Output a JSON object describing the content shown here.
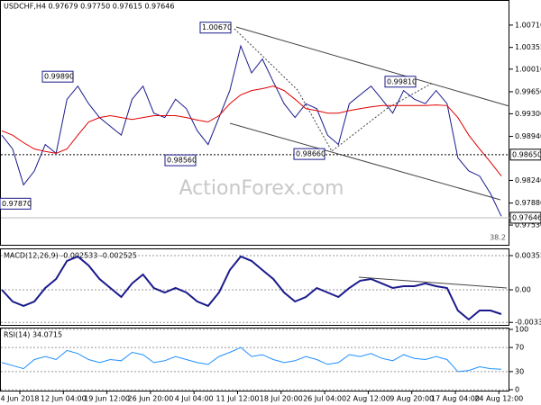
{
  "header": {
    "title": "USDCHF,H4  0.97679 0.97750 0.97615 0.97646",
    "macd_title": "MACD(12,26,9) -0.002533 -0.002525",
    "rsi_title": "RSI(14) 34.0715",
    "watermark": "ActionForex.com"
  },
  "x_labels": [
    "4 Jun 2018",
    "12 Jun 04:00",
    "19 Jun 12:00",
    "26 Jun 20:00",
    "4 Jul 04:00",
    "11 Jul 12:00",
    "18 Jul 20:00",
    "26 Jul 04:00",
    "2 Aug 12:00",
    "9 Aug 20:00",
    "17 Aug 04:00",
    "24 Aug 12:00"
  ],
  "chart_data": [
    {
      "type": "line",
      "ylim": [
        0.97216,
        1.01095
      ],
      "yticks": [
        {
          "value": 1.0071,
          "label": "1.00710"
        },
        1.00355,
        {
          "value": 1.0001,
          "label": "1.00010"
        },
        {
          "value": 0.9965,
          "label": "0.99650"
        },
        {
          "value": 0.993,
          "label": "0.99300"
        },
        {
          "value": 0.9894,
          "label": "0.98940"
        },
        {
          "value": 0.9824,
          "label": "0.98240"
        },
        {
          "value": 0.9788,
          "label": "0.97880"
        },
        {
          "value": 0.9753,
          "label": "0.97530"
        }
      ],
      "series": [
        {
          "color": "#1a1a8c",
          "values": [
            0.9896,
            0.9874,
            0.9817,
            0.9839,
            0.9881,
            0.9867,
            0.9953,
            0.9974,
            0.9946,
            0.9924,
            0.991,
            0.9896,
            0.9953,
            0.9974,
            0.9931,
            0.9924,
            0.9953,
            0.9938,
            0.9903,
            0.9881,
            0.9924,
            0.9967,
            1.0038,
            0.9995,
            1.0017,
            0.9981,
            0.9946,
            0.9924,
            0.9946,
            0.9938,
            0.9896,
            0.9881,
            0.9946,
            0.996,
            0.9974,
            0.9953,
            0.9931,
            0.9967,
            0.9953,
            0.9946,
            0.9967,
            0.9946,
            0.986,
            0.9839,
            0.9831,
            0.9803,
            0.9767
          ]
        },
        {
          "color": "#e00000",
          "values": [
            0.9903,
            0.9896,
            0.9884,
            0.9874,
            0.987,
            0.9867,
            0.9874,
            0.9896,
            0.9917,
            0.9924,
            0.9927,
            0.9924,
            0.9921,
            0.9924,
            0.9927,
            0.9927,
            0.9927,
            0.9924,
            0.992,
            0.9917,
            0.9927,
            0.9946,
            0.996,
            0.9967,
            0.997,
            0.9974,
            0.9967,
            0.9953,
            0.9938,
            0.9935,
            0.9931,
            0.9931,
            0.9935,
            0.9938,
            0.9941,
            0.9943,
            0.9943,
            0.9943,
            0.9943,
            0.9943,
            0.9944,
            0.9943,
            0.9924,
            0.9896,
            0.9874,
            0.9853,
            0.9831
          ]
        }
      ],
      "annotations": [
        {
          "value": 1.0067,
          "label": "1.00670"
        },
        {
          "value": 0.9989,
          "label": "0.99890"
        },
        {
          "value": 0.9856,
          "label": "0.98560"
        },
        {
          "value": 0.9866,
          "label": "0.98660"
        },
        {
          "value": 0.9981,
          "label": "0.99810"
        },
        {
          "value": 0.9787,
          "label": "0.97870"
        }
      ],
      "level": {
        "value": 0.9865,
        "label": "0.98650"
      },
      "last": {
        "value": 0.97646,
        "label": "0.97646"
      },
      "fib_label": "38.2"
    },
    {
      "type": "line",
      "ylim": [
        -0.00365,
        0.00421
      ],
      "yticks": [
        0.003556,
        {
          "value": 0,
          "label": "0.00"
        },
        -0.003391
      ],
      "series": [
        {
          "color": "#1a1a8c",
          "values": [
            0,
            -0.00122,
            -0.00168,
            -0.00122,
            0.00019,
            0.00112,
            0.003,
            0.00346,
            0.00253,
            0.00112,
            0.00019,
            -0.00075,
            0.00066,
            0.00159,
            0.00019,
            -0.00028,
            0.00019,
            -0.00028,
            -0.00122,
            -0.00168,
            -0.00028,
            0.00206,
            0.00346,
            0.003,
            0.00206,
            0.00112,
            -0.00028,
            -0.00122,
            -0.00075,
            0.00019,
            -0.00028,
            -0.00075,
            0.00019,
            0.00094,
            0.00112,
            0.00066,
            0.00019,
            0.00037,
            0.00037,
            0.00066,
            0.00037,
            0.00019,
            -0.00215,
            -0.00309,
            -0.00215,
            -0.00215,
            -0.00253
          ]
        }
      ]
    },
    {
      "type": "line",
      "ylim": [
        0,
        100
      ],
      "yticks": [
        100,
        70,
        30,
        0
      ],
      "series": [
        {
          "color": "#1e90ff",
          "values": [
            45,
            40,
            35,
            50,
            55,
            50,
            65,
            60,
            50,
            45,
            50,
            48,
            62,
            58,
            45,
            48,
            55,
            50,
            45,
            42,
            55,
            62,
            70,
            55,
            58,
            50,
            45,
            48,
            55,
            50,
            42,
            45,
            58,
            55,
            60,
            52,
            48,
            58,
            52,
            50,
            55,
            50,
            30,
            32,
            38,
            35,
            34
          ]
        }
      ]
    }
  ]
}
